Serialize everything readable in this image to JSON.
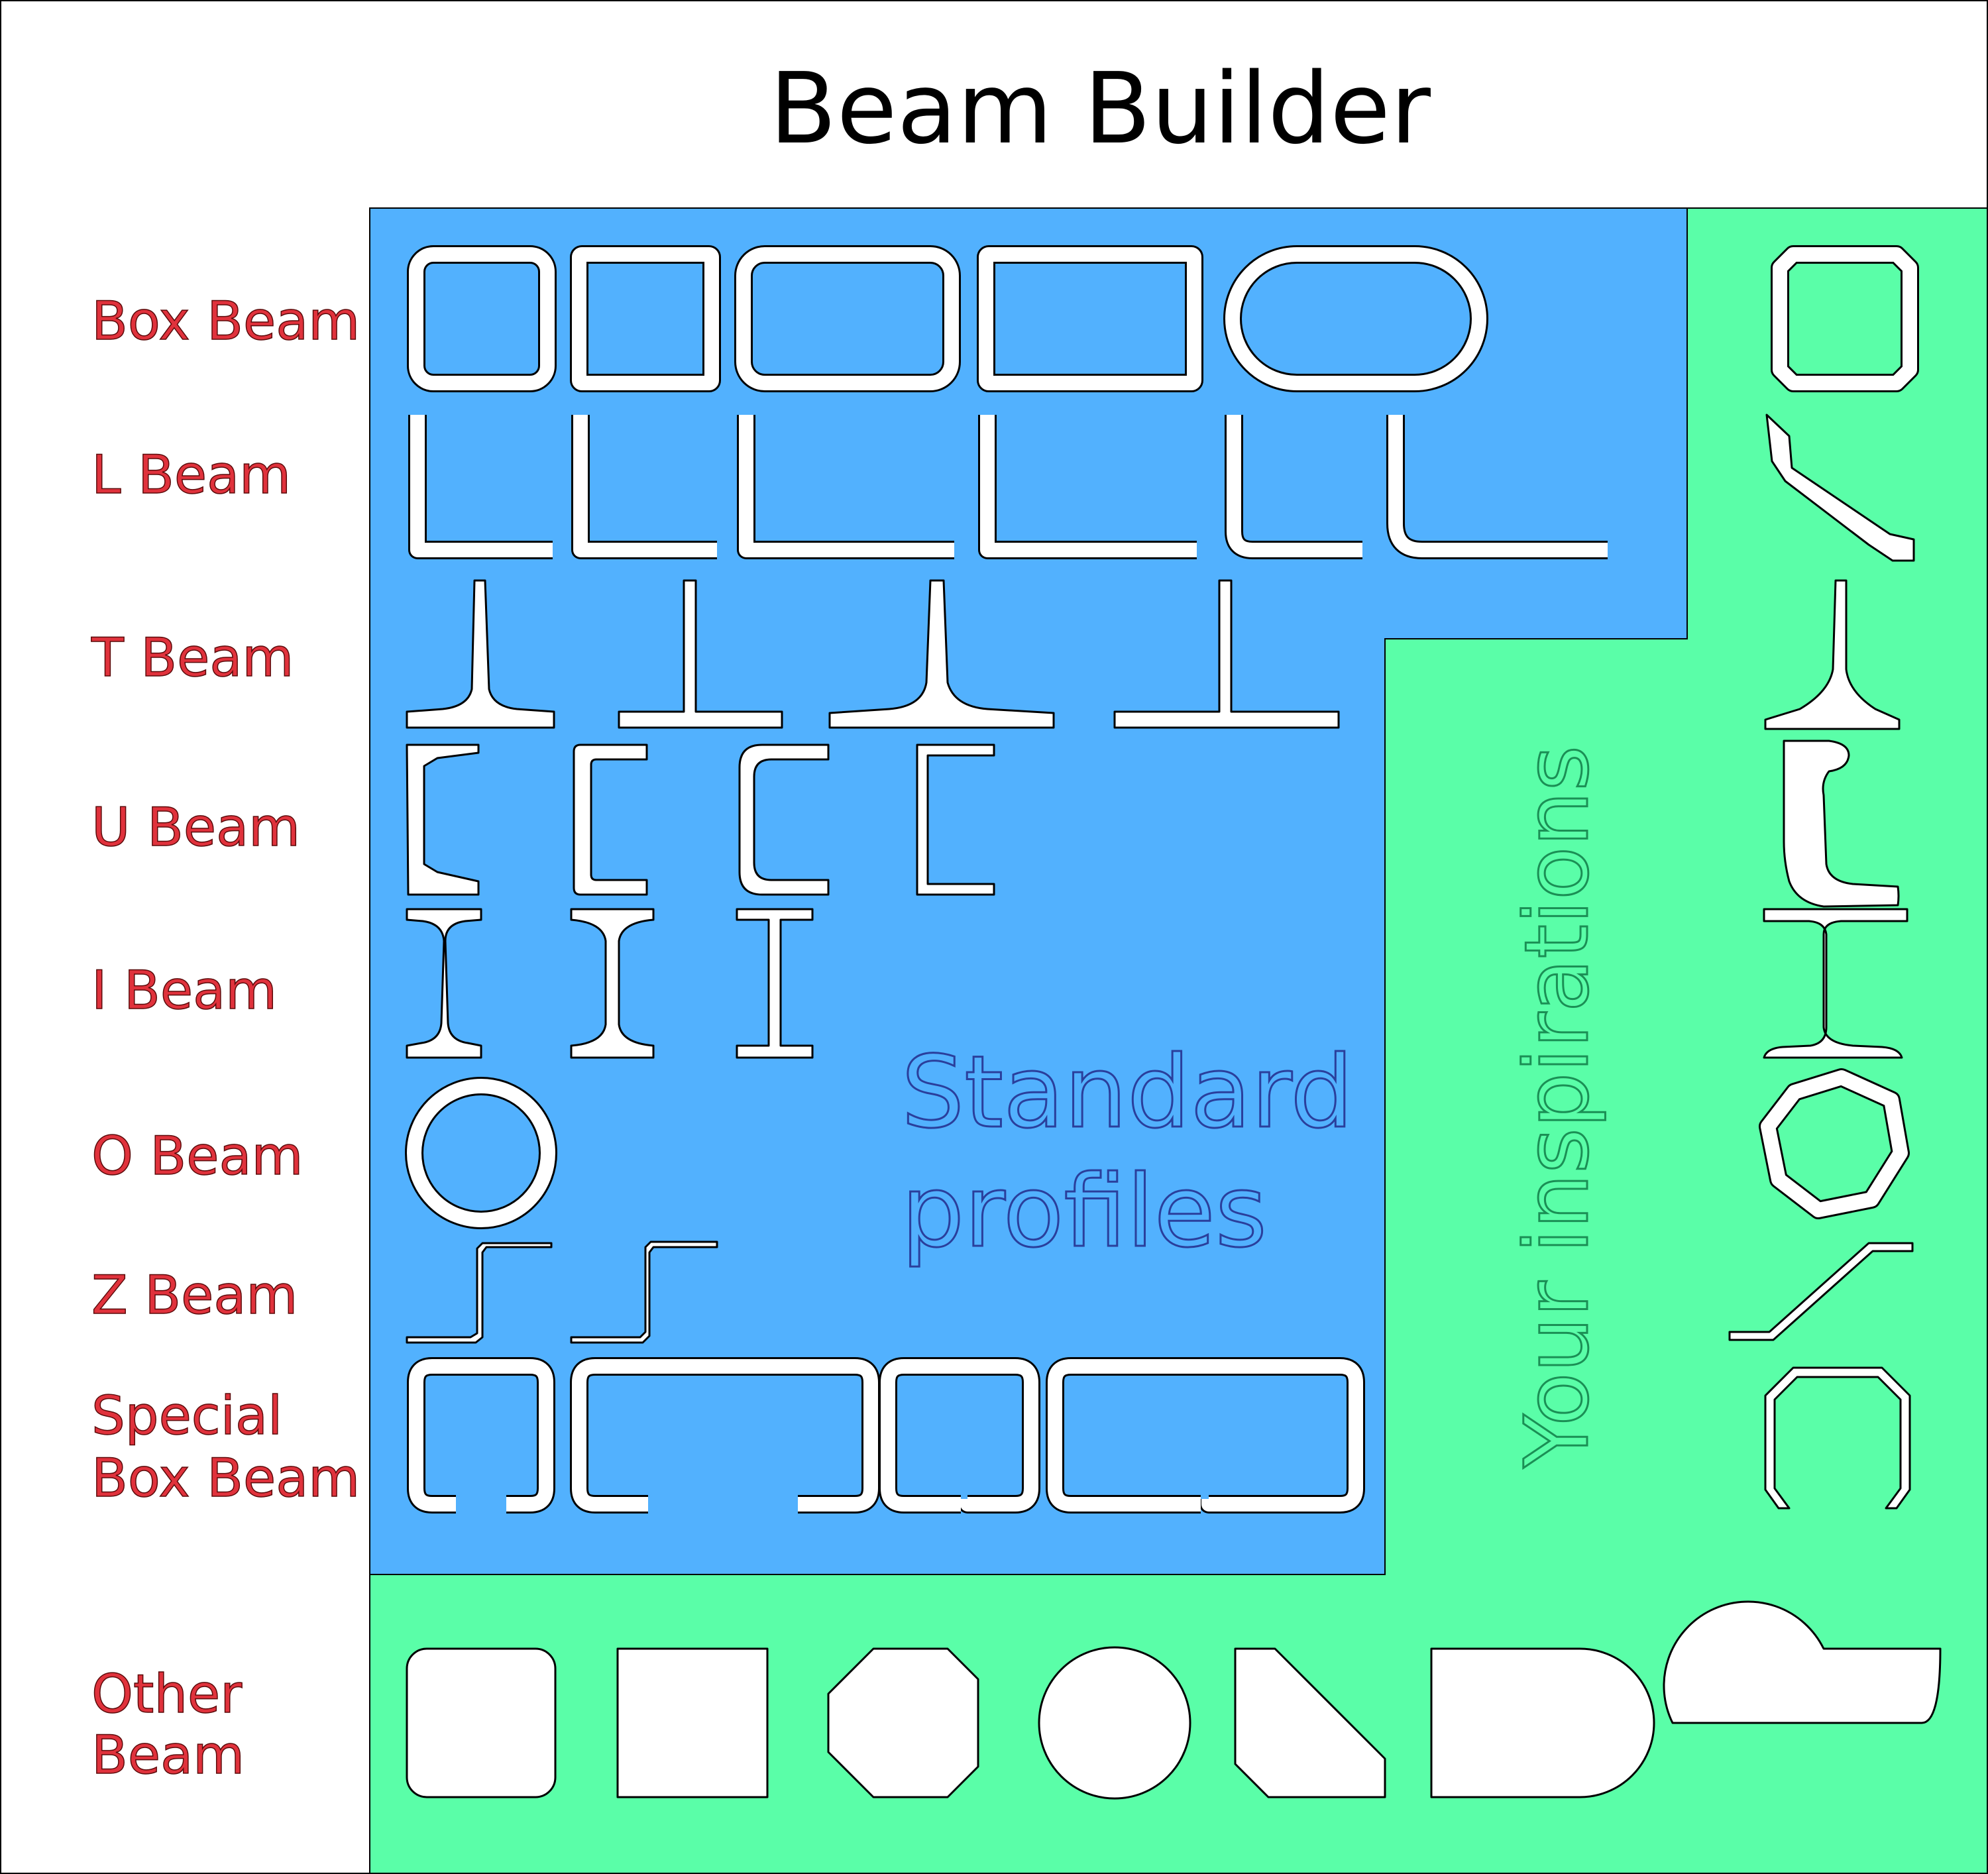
{
  "title": "Beam Builder",
  "rows": [
    {
      "label": "Box Beam"
    },
    {
      "label": "L Beam"
    },
    {
      "label": "T Beam"
    },
    {
      "label": "U Beam"
    },
    {
      "label": "I Beam"
    },
    {
      "label": "O Beam"
    },
    {
      "label": "Z Beam"
    },
    {
      "label": "Special",
      "label2": "Box Beam"
    },
    {
      "label": "Other",
      "label2": "Beam"
    }
  ],
  "standard_label_line1": "Standard",
  "standard_label_line2": "profiles",
  "inspirations_label": "Your inspirations",
  "colors": {
    "standard_panel": "#52b1fe",
    "inspiration_panel": "#5afea8",
    "label_red": "#e0323c",
    "standard_text": "#2a3f9c",
    "inspiration_text": "#1b8f55"
  }
}
